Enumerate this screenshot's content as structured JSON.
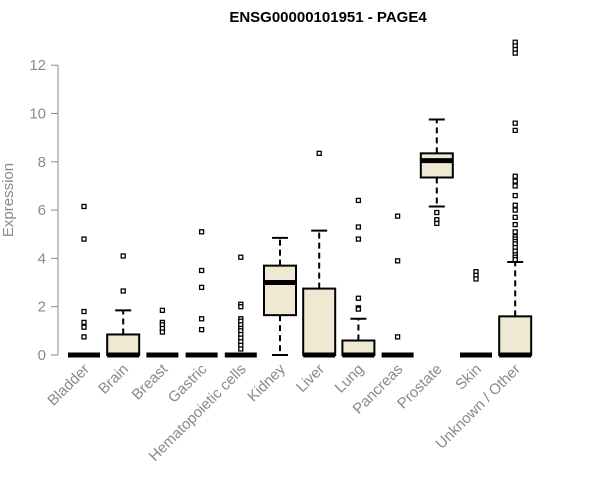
{
  "chart_data": {
    "type": "boxplot",
    "title": "ENSG00000101951 - PAGE4",
    "ylabel": "Expression",
    "xlabel": "",
    "ylim": [
      0,
      13
    ],
    "yticks": [
      0,
      2,
      4,
      6,
      8,
      10,
      12
    ],
    "grid": false,
    "legend": "none",
    "box_fill": "#efe9d3",
    "categories": [
      "Bladder",
      "Brain",
      "Breast",
      "Gastric",
      "Hematopoietic cells",
      "Kidney",
      "Liver",
      "Lung",
      "Pancreas",
      "Prostate",
      "Skin",
      "Unknown / Other"
    ],
    "boxes": [
      {
        "category": "Bladder",
        "q1": 0,
        "median": 0,
        "q3": 0,
        "whisker_low": 0,
        "whisker_high": 0,
        "outliers": [
          6.15,
          4.8,
          1.8,
          1.35,
          1.15,
          0.75
        ]
      },
      {
        "category": "Brain",
        "q1": 0,
        "median": 0,
        "q3": 0.85,
        "whisker_low": 0,
        "whisker_high": 1.85,
        "outliers": [
          4.1,
          2.65
        ]
      },
      {
        "category": "Breast",
        "q1": 0,
        "median": 0,
        "q3": 0,
        "whisker_low": 0,
        "whisker_high": 0,
        "outliers": [
          1.85,
          1.35,
          1.25,
          1.1,
          0.95
        ]
      },
      {
        "category": "Gastric",
        "q1": 0,
        "median": 0,
        "q3": 0,
        "whisker_low": 0,
        "whisker_high": 0,
        "outliers": [
          5.1,
          3.5,
          2.8,
          1.5,
          1.05
        ]
      },
      {
        "category": "Hematopoietic cells",
        "q1": 0,
        "median": 0,
        "q3": 0,
        "whisker_low": 0,
        "whisker_high": 0,
        "outliers": [
          4.05,
          2.1,
          2.0,
          1.5,
          1.4,
          1.25,
          1.1,
          1.0,
          0.85,
          0.7,
          0.55,
          0.4,
          0.25
        ]
      },
      {
        "category": "Kidney",
        "q1": 1.65,
        "median": 3.0,
        "q3": 3.7,
        "whisker_low": 0,
        "whisker_high": 4.85,
        "outliers": []
      },
      {
        "category": "Liver",
        "q1": 0,
        "median": 0,
        "q3": 2.75,
        "whisker_low": 0,
        "whisker_high": 5.15,
        "outliers": [
          8.35
        ]
      },
      {
        "category": "Lung",
        "q1": 0,
        "median": 0,
        "q3": 0.6,
        "whisker_low": 0,
        "whisker_high": 1.5,
        "outliers": [
          6.4,
          5.3,
          4.8,
          2.35,
          1.95,
          1.9
        ]
      },
      {
        "category": "Pancreas",
        "q1": 0,
        "median": 0,
        "q3": 0,
        "whisker_low": 0,
        "whisker_high": 0,
        "outliers": [
          5.75,
          3.9,
          0.75
        ]
      },
      {
        "category": "Prostate",
        "q1": 7.35,
        "median": 8.05,
        "q3": 8.35,
        "whisker_low": 6.15,
        "whisker_high": 9.75,
        "outliers": [
          5.9,
          5.6,
          5.45
        ]
      },
      {
        "category": "Skin",
        "q1": 0,
        "median": 0,
        "q3": 0,
        "whisker_low": 0,
        "whisker_high": 0,
        "outliers": [
          3.45,
          3.3,
          3.15
        ]
      },
      {
        "category": "Unknown / Other",
        "q1": 0,
        "median": 0,
        "q3": 1.6,
        "whisker_low": 0,
        "whisker_high": 3.85,
        "outliers": [
          12.95,
          12.8,
          12.65,
          12.5,
          9.6,
          9.3,
          7.4,
          7.2,
          7.0,
          6.6,
          6.2,
          6.0,
          5.7,
          5.4,
          5.1,
          4.9,
          4.8,
          4.7,
          4.6,
          4.45,
          4.3,
          4.15,
          4.05,
          3.95
        ]
      }
    ]
  }
}
